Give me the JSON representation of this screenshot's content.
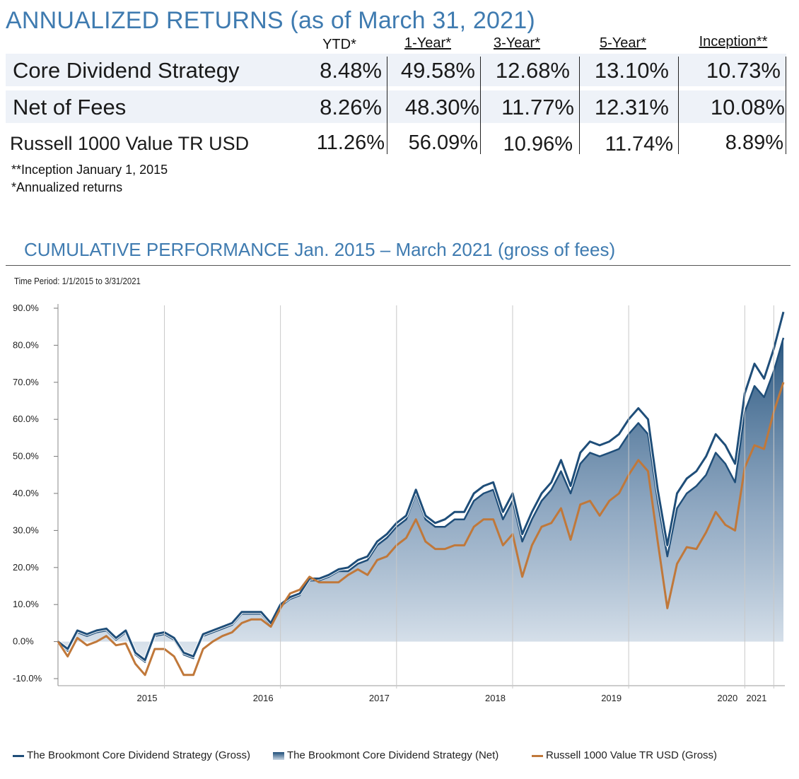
{
  "colors": {
    "accent": "#3f7bb0",
    "gross": "#1f4e79",
    "russell": "#c0783a",
    "row_shade": "#eef2f8"
  },
  "returns_table": {
    "title": "ANNUALIZED RETURNS",
    "subtitle": "(as of March 31, 2021)",
    "columns": [
      "YTD*",
      "1-Year*",
      "3-Year*",
      "5-Year*",
      "Inception**"
    ],
    "rows": [
      {
        "label": "Core Dividend Strategy",
        "values": [
          "8.48%",
          "49.58%",
          "12.68%",
          "13.10%",
          "10.73%"
        ]
      },
      {
        "label": "Net of Fees",
        "values": [
          "8.26%",
          "48.30%",
          "11.77%",
          "12.31%",
          "10.08%"
        ]
      },
      {
        "label": "Russell 1000 Value TR USD",
        "values": [
          "11.26%",
          "56.09%",
          "10.96%",
          "11.74%",
          "8.89%"
        ]
      }
    ],
    "notes": [
      "**Inception January 1, 2015",
      "*Annualized returns"
    ]
  },
  "chart_data": {
    "type": "area",
    "title": "CUMULATIVE PERFORMANCE Jan. 2015 – March 2021 (gross of fees)",
    "time_period": "Time Period: 1/1/2015 to 3/31/2021",
    "ylabel": "",
    "xlabel": "",
    "ylim": [
      -10,
      90
    ],
    "yticks": [
      -10,
      0,
      10,
      20,
      30,
      40,
      50,
      60,
      70,
      80,
      90
    ],
    "ytick_labels": [
      "-10.0%",
      "0.0%",
      "10.0%",
      "20.0%",
      "30.0%",
      "40.0%",
      "50.0%",
      "60.0%",
      "70.0%",
      "80.0%",
      "90.0%"
    ],
    "xlim": [
      0,
      75
    ],
    "xticks": [
      {
        "label": "2015",
        "x": 11
      },
      {
        "label": "2016",
        "x": 23
      },
      {
        "label": "2017",
        "x": 35
      },
      {
        "label": "2018",
        "x": 47
      },
      {
        "label": "2019",
        "x": 59
      },
      {
        "label": "2020",
        "x": 71
      },
      {
        "label": "2021",
        "x": 74
      }
    ],
    "legend_position": "bottom",
    "series": [
      {
        "name": "The Brookmont Core Dividend Strategy (Gross)",
        "style": "line",
        "color": "#1f4e79",
        "values": [
          0,
          -2,
          3,
          2,
          3,
          3.5,
          1,
          3,
          -3,
          -5,
          2,
          2.5,
          1,
          -3,
          -4,
          2,
          3,
          4,
          5,
          8,
          8,
          8,
          5,
          10,
          12,
          13,
          17,
          17,
          18,
          19.5,
          20,
          22,
          23,
          27,
          29,
          32,
          34,
          41,
          34,
          32,
          33,
          35,
          35,
          40,
          42,
          43,
          35,
          40,
          29,
          35,
          40,
          43,
          49,
          42,
          51,
          54,
          53,
          54,
          56,
          60,
          63,
          60,
          41,
          26,
          40,
          44,
          46,
          50,
          56,
          53,
          48,
          67,
          75,
          71,
          79,
          89
        ]
      },
      {
        "name": "The Brookmont Core Dividend Strategy (Net)",
        "style": "area",
        "color": "#1f4e79",
        "values": [
          0,
          -2.5,
          2.5,
          1.5,
          2.5,
          3,
          0.5,
          2.5,
          -3.5,
          -5.5,
          1.5,
          2,
          0.5,
          -3.5,
          -4.5,
          1.5,
          2.5,
          3.5,
          4.5,
          7.5,
          7.5,
          7.5,
          4.5,
          9.5,
          11.5,
          12.5,
          16.5,
          16.5,
          17.5,
          19,
          19,
          21,
          22,
          26,
          28,
          31,
          33,
          40,
          33,
          31,
          31,
          33,
          33,
          38,
          40,
          41,
          33,
          38,
          27,
          33,
          38,
          41,
          46,
          40,
          48,
          51,
          50,
          51,
          52,
          56,
          59,
          56,
          38,
          23,
          36,
          40,
          42,
          45,
          51,
          48,
          43,
          62,
          69,
          66,
          73,
          82
        ]
      },
      {
        "name": "Russell 1000 Value TR USD (Gross)",
        "style": "line",
        "color": "#c0783a",
        "values": [
          0,
          -4,
          1,
          -1,
          0,
          1.5,
          -1,
          -0.5,
          -6,
          -9,
          -2,
          -2,
          -4,
          -9,
          -9,
          -2,
          0,
          1.5,
          2.5,
          5,
          6,
          6,
          4,
          9,
          13,
          14,
          17.5,
          16,
          16,
          16,
          18,
          19.5,
          18,
          22,
          23,
          26,
          28,
          33,
          27,
          25,
          25,
          26,
          26,
          31,
          33,
          33,
          26,
          29,
          17.5,
          26,
          31,
          32,
          36,
          27.5,
          37,
          38,
          34,
          38,
          40,
          45,
          49,
          46,
          27,
          9,
          21,
          25.5,
          25,
          29.5,
          35,
          31.5,
          30,
          47,
          53,
          52,
          62,
          70
        ]
      }
    ]
  },
  "legend": {
    "items": [
      "The Brookmont Core Dividend Strategy (Gross)",
      "The Brookmont Core Dividend Strategy (Net)",
      "Russell 1000 Value TR USD (Gross)"
    ]
  }
}
